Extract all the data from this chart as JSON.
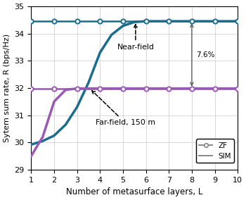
{
  "x_zf": [
    1,
    2,
    3,
    4,
    5,
    6,
    7,
    8,
    9,
    10
  ],
  "zf_nearfield": [
    34.45,
    34.45,
    34.45,
    34.45,
    34.45,
    34.45,
    34.45,
    34.45,
    34.45,
    34.45
  ],
  "zf_farfield": [
    31.98,
    31.98,
    31.98,
    31.98,
    31.98,
    31.98,
    31.98,
    31.98,
    31.98,
    31.98
  ],
  "x_sim": [
    1,
    1.5,
    2,
    2.5,
    3,
    3.5,
    4,
    4.5,
    5,
    5.5,
    6,
    7,
    8,
    9,
    10
  ],
  "sim_nearfield": [
    29.92,
    30.05,
    30.25,
    30.65,
    31.3,
    32.2,
    33.3,
    33.95,
    34.28,
    34.42,
    34.45,
    34.45,
    34.45,
    34.45,
    34.45
  ],
  "sim_farfield": [
    29.5,
    30.2,
    31.5,
    31.93,
    31.98,
    31.98,
    31.98,
    31.98,
    31.98,
    31.98,
    31.98,
    31.98,
    31.98,
    31.98,
    31.98
  ],
  "teal": "#1b6d8e",
  "purple": "#9b59b6",
  "xlabel": "Number of metasurface layers, L",
  "ylabel": "Sytem sum rate, R (bps/Hz)",
  "xlim": [
    1,
    10
  ],
  "ylim": [
    29,
    35
  ],
  "yticks": [
    29,
    30,
    31,
    32,
    33,
    34,
    35
  ],
  "xticks": [
    1,
    2,
    3,
    4,
    5,
    6,
    7,
    8,
    9,
    10
  ],
  "legend_zf_label": "ZF",
  "legend_sim_label": "SIM",
  "nearfield_label": "Near-field",
  "farfield_label": "Far-field, 150 m",
  "annotation_pct": "7.6%",
  "zf_nf_y": 34.45,
  "zf_ff_y": 31.98,
  "pct_x": 8.0
}
